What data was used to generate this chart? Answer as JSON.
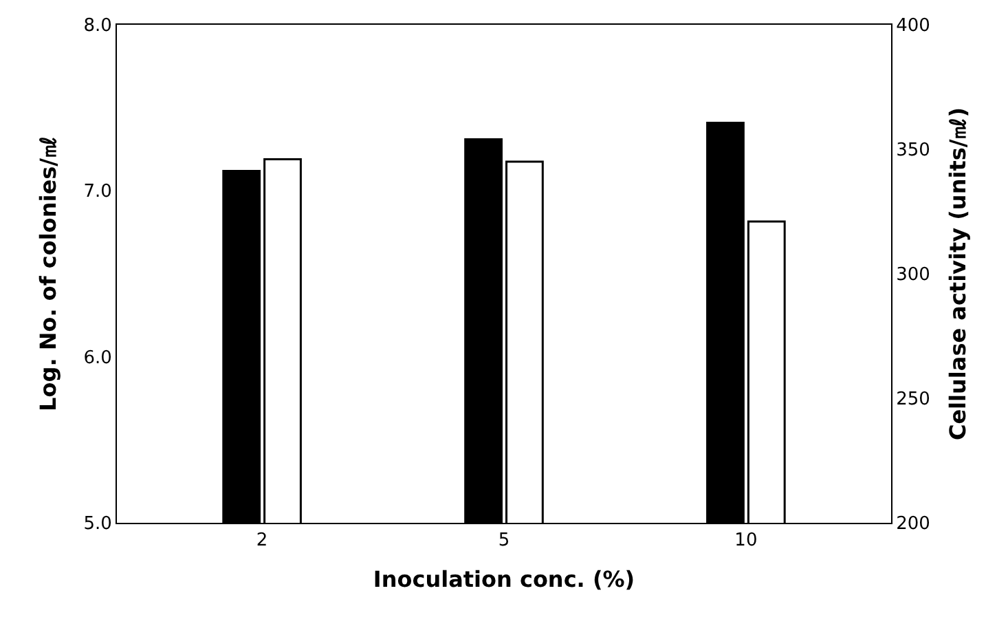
{
  "chart_data": {
    "type": "bar",
    "xlabel": "Inoculation conc. (%)",
    "ylabel": "Log. No. of colonies/㎖",
    "y2label": "Cellulase activity (units/㎖)",
    "categories": [
      "2",
      "5",
      "10"
    ],
    "series": [
      {
        "color": "#000000",
        "values": [
          7.12,
          7.31,
          7.41
        ]
      },
      {
        "color": "#ffffff",
        "values": [
          346,
          345,
          321
        ],
        "axis": "y2"
      }
    ],
    "ylim": [
      5.0,
      8.0
    ],
    "yticks": [
      {
        "value": 5,
        "label": "5.0"
      },
      {
        "value": 6,
        "label": "6.0"
      },
      {
        "value": 7,
        "label": "7.0"
      },
      {
        "value": 8,
        "label": "8.0"
      }
    ],
    "y2lim": [
      200,
      400
    ],
    "y2ticks": [
      200,
      250,
      300,
      350,
      400
    ]
  }
}
